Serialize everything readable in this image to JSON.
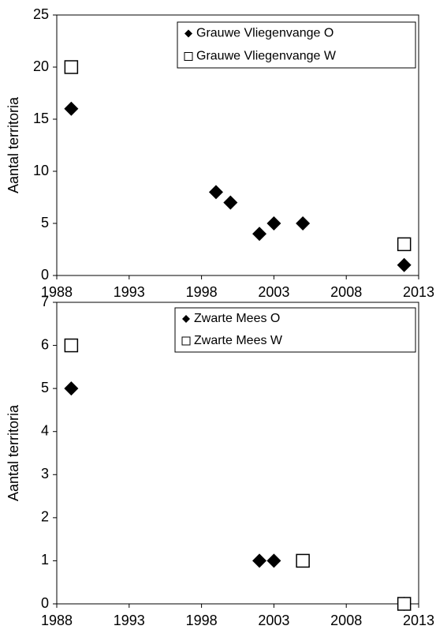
{
  "chart_data": [
    {
      "type": "scatter",
      "ylabel": "Aantal territoria",
      "xlim": [
        1988,
        2013
      ],
      "xticks": [
        1988,
        1993,
        1998,
        2003,
        2008,
        2013
      ],
      "ylim": [
        0,
        25
      ],
      "yticks": [
        0,
        5,
        10,
        15,
        20,
        25
      ],
      "legend": "upper right",
      "series": [
        {
          "name": "Grauwe Vliegenvange O",
          "marker": "diamond",
          "color": "#000000",
          "x": [
            1989,
            1999,
            2000,
            2002,
            2003,
            2005,
            2012
          ],
          "values": [
            16,
            8,
            7,
            4,
            5,
            5,
            1
          ]
        },
        {
          "name": "Grauwe Vliegenvange W",
          "marker": "square",
          "color": "#000000",
          "x": [
            1989,
            2012
          ],
          "values": [
            20,
            3
          ]
        }
      ]
    },
    {
      "type": "scatter",
      "ylabel": "Aantal territoria",
      "xlim": [
        1988,
        2013
      ],
      "xticks": [
        1988,
        1993,
        1998,
        2003,
        2008,
        2013
      ],
      "ylim": [
        0,
        7
      ],
      "yticks": [
        0,
        1,
        2,
        3,
        4,
        5,
        6,
        7
      ],
      "legend": "upper right",
      "series": [
        {
          "name": "Zwarte Mees O",
          "marker": "diamond",
          "color": "#000000",
          "x": [
            1989,
            2002,
            2003,
            2012
          ],
          "values": [
            5,
            1,
            1,
            0
          ]
        },
        {
          "name": "Zwarte Mees W",
          "marker": "square",
          "color": "#000000",
          "x": [
            1989,
            2005,
            2012
          ],
          "values": [
            6,
            1,
            0
          ]
        }
      ]
    }
  ]
}
